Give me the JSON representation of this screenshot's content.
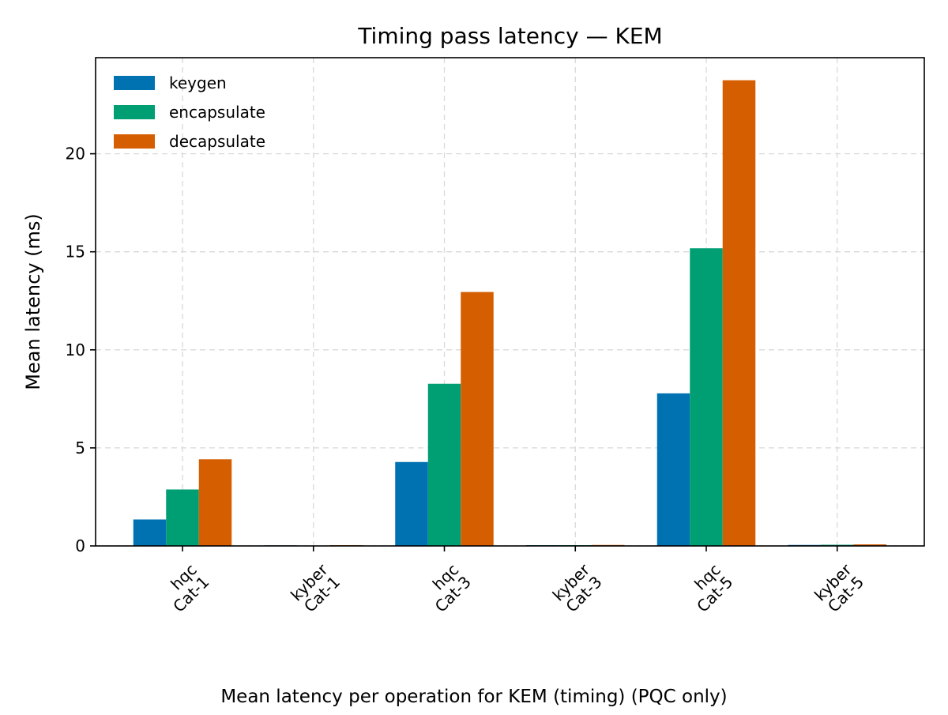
{
  "chart_data": {
    "type": "bar",
    "title": "Timing pass latency — KEM",
    "xlabel": "",
    "ylabel": "Mean latency (ms)",
    "caption": "Mean latency per operation for KEM (timing) (PQC only)",
    "categories": [
      [
        "hqc",
        "Cat-1"
      ],
      [
        "kyber",
        "Cat-1"
      ],
      [
        "hqc",
        "Cat-3"
      ],
      [
        "kyber",
        "Cat-3"
      ],
      [
        "hqc",
        "Cat-5"
      ],
      [
        "kyber",
        "Cat-5"
      ]
    ],
    "series": [
      {
        "name": "keygen",
        "color": "#0072b2",
        "values": [
          1.35,
          0.03,
          4.28,
          0.04,
          7.78,
          0.05
        ]
      },
      {
        "name": "encapsulate",
        "color": "#009e73",
        "values": [
          2.88,
          0.02,
          8.27,
          0.04,
          15.18,
          0.06
        ]
      },
      {
        "name": "decapsulate",
        "color": "#d55e00",
        "values": [
          4.42,
          0.04,
          12.95,
          0.05,
          23.75,
          0.08
        ]
      }
    ],
    "ylim": [
      0,
      24.9
    ],
    "yticks": [
      0,
      5,
      10,
      15,
      20
    ],
    "grid": true,
    "legend_position": "top-left"
  }
}
